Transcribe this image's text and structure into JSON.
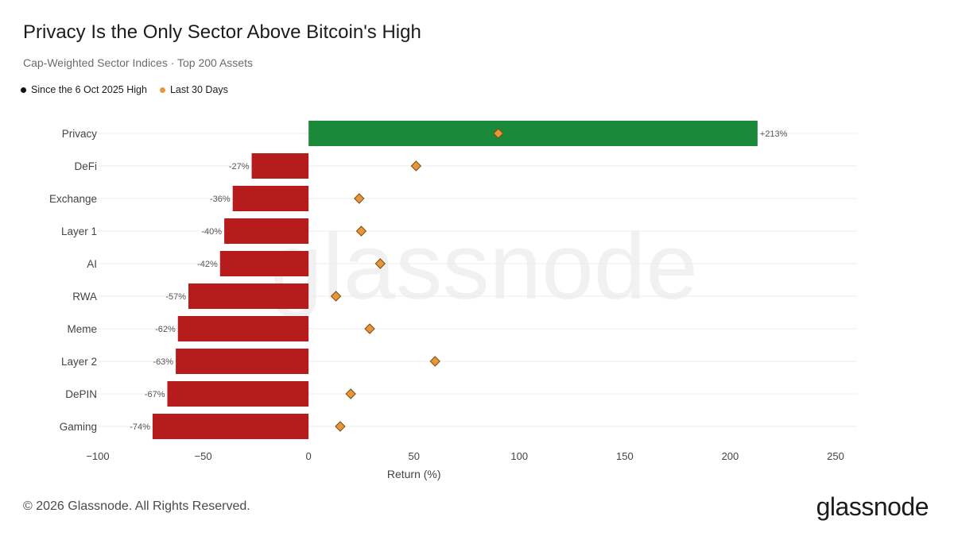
{
  "header": {
    "title": "Privacy Is the Only Sector Above Bitcoin's High",
    "subtitle": "Cap-Weighted Sector Indices · Top 200 Assets"
  },
  "legend": {
    "series_a": {
      "label": "Since the 6 Oct 2025 High",
      "color": "#111111"
    },
    "series_b": {
      "label": "Last 30 Days",
      "color": "#e8963a"
    }
  },
  "footer": {
    "copyright": "© 2026 Glassnode. All Rights Reserved.",
    "brand": "glassnode"
  },
  "watermark": "glassnode",
  "chart_data": {
    "type": "bar",
    "orientation": "horizontal",
    "categories": [
      "Privacy",
      "DeFi",
      "Exchange",
      "Layer 1",
      "AI",
      "RWA",
      "Meme",
      "Layer 2",
      "DePIN",
      "Gaming"
    ],
    "series": [
      {
        "name": "Since the 6 Oct 2025 High",
        "type": "bar",
        "values": [
          213,
          -27,
          -36,
          -40,
          -42,
          -57,
          -62,
          -63,
          -67,
          -74
        ],
        "labels": [
          "+213%",
          "-27%",
          "-36%",
          "-40%",
          "-42%",
          "-57%",
          "-62%",
          "-63%",
          "-67%",
          "-74%"
        ],
        "positive_color": "#1a8a3a",
        "negative_color": "#b71c1c"
      },
      {
        "name": "Last 30 Days",
        "type": "scatter",
        "marker": "diamond",
        "values": [
          90,
          51,
          24,
          25,
          34,
          13,
          29,
          60,
          20,
          15
        ],
        "color": "#e8963a"
      }
    ],
    "xlabel": "Return (%)",
    "xlim": [
      -100,
      250
    ],
    "xticks": [
      -100,
      -50,
      0,
      50,
      100,
      150,
      200,
      250
    ],
    "xtick_labels": [
      "−100",
      "−50",
      "0",
      "50",
      "100",
      "150",
      "200",
      "250"
    ],
    "grid": true,
    "legend_position": "top-left"
  }
}
